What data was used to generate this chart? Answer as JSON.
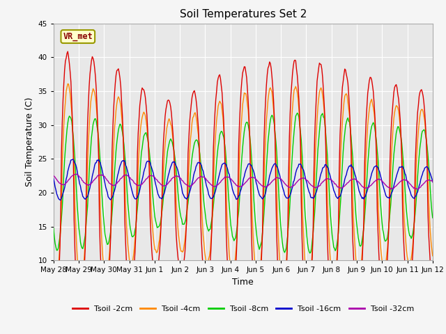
{
  "title": "Soil Temperatures Set 2",
  "xlabel": "Time",
  "ylabel": "Soil Temperature (C)",
  "ylim": [
    10,
    45
  ],
  "yticks": [
    10,
    15,
    20,
    25,
    30,
    35,
    40,
    45
  ],
  "fig_bg_color": "#f5f5f5",
  "plot_bg_color": "#e8e8e8",
  "annotation_text": "VR_met",
  "annotation_box_facecolor": "#ffffcc",
  "annotation_box_edgecolor": "#999900",
  "annotation_text_color": "#880000",
  "series_colors": [
    "#dd0000",
    "#ff8800",
    "#00cc00",
    "#0000cc",
    "#aa00aa"
  ],
  "series_labels": [
    "Tsoil -2cm",
    "Tsoil -4cm",
    "Tsoil -8cm",
    "Tsoil -16cm",
    "Tsoil -32cm"
  ],
  "x_tick_labels": [
    "May 28",
    "May 29",
    "May 30",
    "May 31",
    "Jun 1",
    "Jun 2",
    "Jun 3",
    "Jun 4",
    "Jun 5",
    "Jun 6",
    "Jun 7",
    "Jun 8",
    "Jun 9",
    "Jun 10",
    "Jun 11",
    "Jun 12"
  ],
  "num_points": 480,
  "days": 15
}
